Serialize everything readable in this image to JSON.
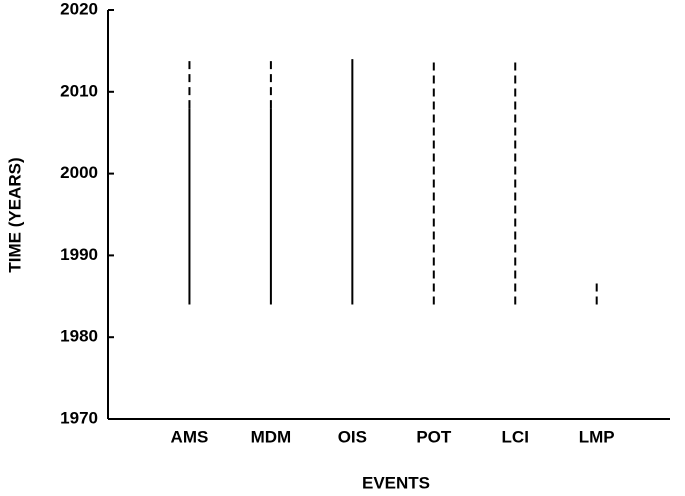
{
  "chart_data": {
    "type": "range",
    "x_label": "EVENTS",
    "y_label": "TIME (YEARS)",
    "categories": [
      "AMS",
      "MDM",
      "OIS",
      "POT",
      "LCI",
      "LMP"
    ],
    "series": [
      {
        "style": "solid",
        "color": "#000000",
        "start": [
          1984,
          1984,
          1984,
          null,
          null,
          null
        ],
        "end": [
          2008,
          2008,
          2014,
          null,
          null,
          null
        ]
      },
      {
        "style": "dashed",
        "color": "#000000",
        "start": [
          2008,
          2008,
          null,
          1984,
          1984,
          1984
        ],
        "end": [
          2014,
          2014,
          null,
          2014,
          2014,
          1987
        ]
      }
    ],
    "ylim": [
      1970,
      2020
    ],
    "yticks": [
      1970,
      1980,
      1990,
      2000,
      2010,
      2020
    ],
    "grid": false
  }
}
